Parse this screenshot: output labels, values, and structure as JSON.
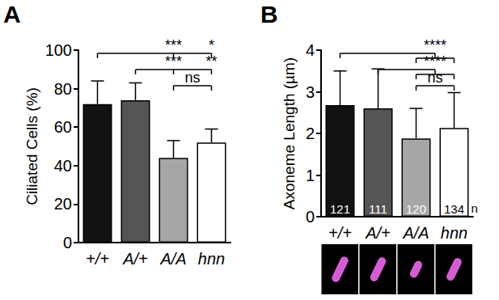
{
  "chart_data": [
    {
      "type": "bar",
      "title": "A",
      "y_label": "Ciliated Cells (%)",
      "categories": [
        "+/+",
        "A/+",
        "A/A",
        "hnn"
      ],
      "values": [
        72,
        74,
        44,
        52
      ],
      "errors": [
        12,
        9,
        9,
        7
      ],
      "colors": [
        "#111111",
        "#555555",
        "#a6a6a6",
        "#ffffff"
      ],
      "ylim": [
        0,
        100
      ],
      "yticks": [
        0,
        20,
        40,
        60,
        80,
        100
      ],
      "grid": false,
      "annotations": [
        {
          "from": "+/+",
          "to": [
            "A/A",
            "hnn"
          ],
          "labels": [
            "***",
            "*"
          ]
        },
        {
          "from": "A/+",
          "to": [
            "A/A",
            "hnn"
          ],
          "labels": [
            "***",
            "**"
          ]
        },
        {
          "from": "A/A",
          "to": [
            "hnn"
          ],
          "labels": [
            "ns"
          ]
        }
      ]
    },
    {
      "type": "bar",
      "title": "B",
      "y_label": "Axoneme Length (µm)",
      "categories": [
        "+/+",
        "A/+",
        "A/A",
        "hnn"
      ],
      "values": [
        2.68,
        2.6,
        1.88,
        2.13
      ],
      "errors": [
        0.82,
        0.95,
        0.72,
        0.85
      ],
      "counts": [
        121,
        111,
        120,
        134
      ],
      "count_label": "n",
      "colors": [
        "#111111",
        "#555555",
        "#a6a6a6",
        "#ffffff"
      ],
      "ylim": [
        0,
        4
      ],
      "yticks": [
        0,
        1,
        2,
        3,
        4
      ],
      "grid": false,
      "annotations": [
        {
          "from": "+/+",
          "to": [
            "A/A",
            "hnn"
          ],
          "labels": [
            "****"
          ]
        },
        {
          "from": "A/+",
          "to": [
            "A/A",
            "hnn"
          ],
          "labels": [
            "****"
          ]
        },
        {
          "from": "A/A",
          "to": [
            "hnn"
          ],
          "labels": [
            "ns"
          ]
        }
      ]
    }
  ]
}
